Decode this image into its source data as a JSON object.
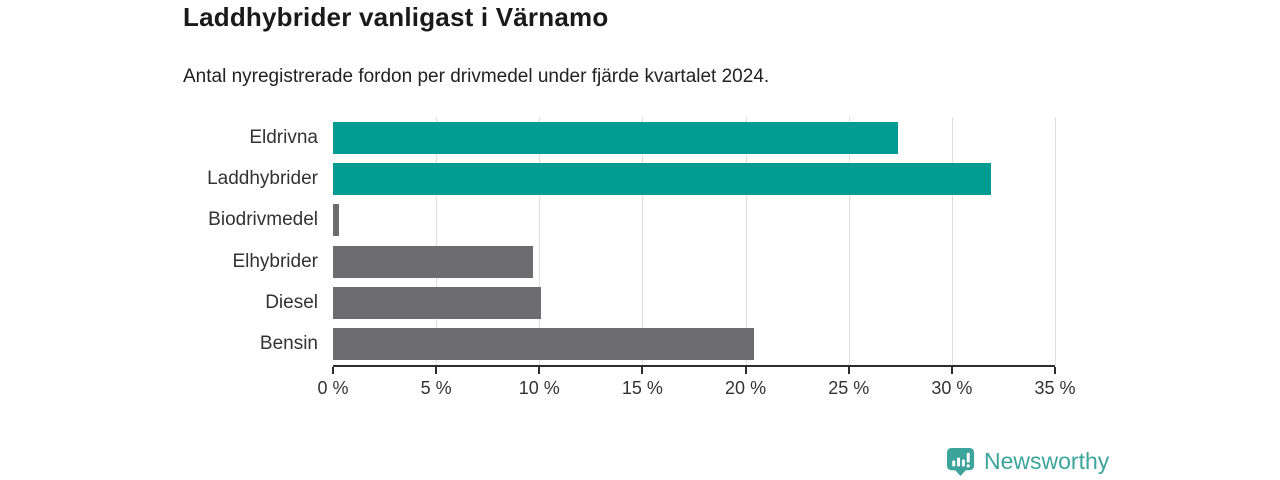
{
  "chart_data": {
    "type": "bar",
    "orientation": "horizontal",
    "title": "Laddhybrider vanligast i Värnamo",
    "subtitle": "Antal nyregistrerade fordon per drivmedel under fjärde kvartalet 2024.",
    "categories": [
      "Eldrivna",
      "Laddhybrider",
      "Biodrivmedel",
      "Elhybrider",
      "Diesel",
      "Bensin"
    ],
    "values": [
      27.4,
      31.9,
      0.3,
      9.7,
      10.1,
      20.4
    ],
    "unit": "%",
    "bar_colors": [
      "#009c92",
      "#009c92",
      "#6c6c70",
      "#6c6c70",
      "#6c6c70",
      "#6c6c70"
    ],
    "xlim": [
      0,
      35
    ],
    "x_tick_labels": [
      "0 %",
      "5 %",
      "10 %",
      "15 %",
      "20 %",
      "25 %",
      "30 %",
      "35 %"
    ],
    "grid": "vertical",
    "legend": "none"
  },
  "colors": {
    "highlight_teal": "#009c92",
    "neutral_gray": "#6c6c70",
    "gridline": "#e0e0e0",
    "axis": "#2d2d2d",
    "text": "#333333",
    "brand_teal": "#3da49b"
  },
  "branding": {
    "name": "Newsworthy"
  }
}
